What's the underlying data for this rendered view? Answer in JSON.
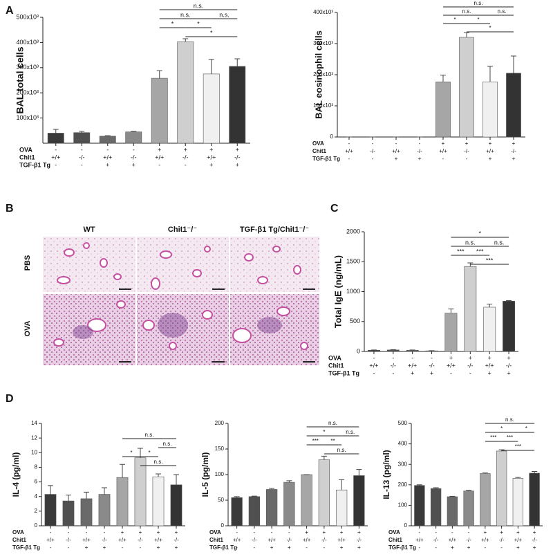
{
  "panel_labels": [
    "A",
    "B",
    "C",
    "D"
  ],
  "histology": {
    "columns": [
      "WT",
      "Chit1⁻/⁻",
      "TGF-β1 Tg/Chit1⁻/⁻"
    ],
    "rows": [
      "PBS",
      "OVA"
    ]
  },
  "chart_data": [
    {
      "type": "bar",
      "ylabel": "BAL total cells",
      "values": [
        40000,
        42000,
        28000,
        45000,
        258000,
        403000,
        275000,
        305000
      ],
      "errors": [
        15000,
        5000,
        2000,
        2000,
        30000,
        12000,
        58000,
        30000
      ],
      "colors": [
        "#3a3a3a",
        "#505050",
        "#6a6a6a",
        "#8a8a8a",
        "#a6a6a6",
        "#cfcfcf",
        "#f0f0f0",
        "#333333"
      ],
      "ylim": [
        0,
        500000
      ],
      "yticks": [
        {
          "value": 100000,
          "label": "100x10³"
        },
        {
          "value": 200000,
          "label": "200x10³"
        },
        {
          "value": 300000,
          "label": "300x10³"
        },
        {
          "value": 400000,
          "label": "400x10³"
        },
        {
          "value": 500000,
          "label": "500x10³"
        }
      ],
      "significance": [
        [
          {
            "bars": [
              4,
              7
            ],
            "label": "n.s."
          }
        ],
        [
          {
            "bars": [
              4,
              6
            ],
            "label": "n.s."
          },
          {
            "bars": [
              6,
              7
            ],
            "label": "n.s."
          }
        ],
        [
          {
            "bars": [
              4,
              5
            ],
            "label": "*"
          },
          {
            "bars": [
              5,
              6
            ],
            "label": "*"
          }
        ],
        [
          {
            "bars": [
              5,
              7
            ],
            "label": "*"
          }
        ]
      ],
      "conditions": [
        {
          "label": "OVA",
          "values": [
            "-",
            "-",
            "-",
            "-",
            "+",
            "+",
            "+",
            "+"
          ]
        },
        {
          "label": "Chit1",
          "values": [
            "+/+",
            "-/-",
            "+/+",
            "-/-",
            "+/+",
            "-/-",
            "+/+",
            "-/-"
          ]
        },
        {
          "label": "TGF-β1 Tg",
          "values": [
            "-",
            "-",
            "+",
            "+",
            "-",
            "-",
            "+",
            "+"
          ]
        }
      ]
    },
    {
      "type": "bar",
      "ylabel": "BAL eosinophil cells",
      "values": [
        0,
        0,
        0,
        0,
        177000,
        320000,
        177000,
        205000
      ],
      "errors": [
        0,
        0,
        0,
        0,
        22000,
        15000,
        50000,
        55000
      ],
      "colors": [
        "#3a3a3a",
        "#505050",
        "#6a6a6a",
        "#8a8a8a",
        "#a6a6a6",
        "#cfcfcf",
        "#f0f0f0",
        "#333333"
      ],
      "ylim": [
        0,
        400000
      ],
      "yticks": [
        0,
        {
          "value": 100000,
          "label": "100x10³"
        },
        {
          "value": 200000,
          "label": "200x10³"
        },
        {
          "value": 300000,
          "label": "300x10³"
        },
        {
          "value": 400000,
          "label": "400x10³"
        }
      ],
      "significance": [
        [
          {
            "bars": [
              4,
              7
            ],
            "label": "n.s."
          }
        ],
        [
          {
            "bars": [
              4,
              6
            ],
            "label": "n.s."
          },
          {
            "bars": [
              6,
              7
            ],
            "label": "n.s."
          }
        ],
        [
          {
            "bars": [
              4,
              5
            ],
            "label": "*"
          },
          {
            "bars": [
              5,
              6
            ],
            "label": "*"
          }
        ],
        [
          {
            "bars": [
              5,
              7
            ],
            "label": "*"
          }
        ]
      ],
      "conditions": [
        {
          "label": "OVA",
          "values": [
            "-",
            "-",
            "-",
            "-",
            "+",
            "+",
            "+",
            "+"
          ]
        },
        {
          "label": "Chit1",
          "values": [
            "+/+",
            "-/-",
            "+/+",
            "-/-",
            "+/+",
            "-/-",
            "+/+",
            "-/-"
          ]
        },
        {
          "label": "TGF-β1 Tg",
          "values": [
            "-",
            "-",
            "+",
            "+",
            "-",
            "-",
            "+",
            "+"
          ]
        }
      ]
    },
    {
      "type": "bar",
      "ylabel": "Total IgE (ng/mL)",
      "values": [
        20,
        25,
        20,
        10,
        640,
        1420,
        740,
        840
      ],
      "errors": [
        5,
        5,
        5,
        3,
        70,
        60,
        50,
        10
      ],
      "colors": [
        "#3a3a3a",
        "#505050",
        "#6a6a6a",
        "#8a8a8a",
        "#a6a6a6",
        "#cfcfcf",
        "#f0f0f0",
        "#333333"
      ],
      "ylim": [
        0,
        2000
      ],
      "yticks": [
        0,
        500,
        1000,
        1500,
        2000
      ],
      "significance": [
        [
          {
            "bars": [
              4,
              7
            ],
            "label": "*"
          }
        ],
        [
          {
            "bars": [
              4,
              6
            ],
            "label": "n.s."
          },
          {
            "bars": [
              6,
              7
            ],
            "label": "n.s."
          }
        ],
        [
          {
            "bars": [
              4,
              5
            ],
            "label": "***"
          },
          {
            "bars": [
              5,
              6
            ],
            "label": "***"
          }
        ],
        [
          {
            "bars": [
              5,
              7
            ],
            "label": "***"
          }
        ]
      ],
      "conditions": [
        {
          "label": "OVA",
          "values": [
            "-",
            "-",
            "-",
            "-",
            "+",
            "+",
            "+",
            "+"
          ]
        },
        {
          "label": "Chit1",
          "values": [
            "+/+",
            "-/-",
            "+/+",
            "-/-",
            "+/+",
            "-/-",
            "+/+",
            "-/-"
          ]
        },
        {
          "label": "TGF-β1 Tg",
          "values": [
            "-",
            "-",
            "+",
            "+",
            "-",
            "-",
            "+",
            "+"
          ]
        }
      ]
    },
    {
      "type": "bar",
      "ylabel": "IL-4 (pg/ml)",
      "values": [
        4.3,
        3.4,
        3.7,
        4.3,
        6.6,
        9.3,
        6.7,
        5.6
      ],
      "errors": [
        1.2,
        0.8,
        0.9,
        0.9,
        1.8,
        1.3,
        0.4,
        1.4
      ],
      "colors": [
        "#3a3a3a",
        "#505050",
        "#6a6a6a",
        "#8a8a8a",
        "#a6a6a6",
        "#cfcfcf",
        "#f0f0f0",
        "#333333"
      ],
      "ylim": [
        0,
        14
      ],
      "yticks": [
        0,
        2,
        4,
        6,
        8,
        10,
        12,
        14
      ],
      "significance": [
        [
          {
            "bars": [
              4,
              7
            ],
            "label": "n.s."
          }
        ],
        [
          {
            "bars": [
              6,
              7
            ],
            "label": "n.s."
          }
        ],
        [
          {
            "bars": [
              4,
              5
            ],
            "label": "*"
          },
          {
            "bars": [
              5,
              6
            ],
            "label": "*"
          }
        ],
        [
          {
            "bars": [
              5,
              7
            ],
            "label": "n.s."
          }
        ]
      ],
      "conditions": [
        {
          "label": "OVA",
          "values": [
            "-",
            "-",
            "-",
            "-",
            "+",
            "+",
            "+",
            "+"
          ]
        },
        {
          "label": "Chit1",
          "values": [
            "+/+",
            "-/-",
            "+/+",
            "-/-",
            "+/+",
            "-/-",
            "+/+",
            "-/-"
          ]
        },
        {
          "label": "TGF-β1 Tg",
          "values": [
            "-",
            "-",
            "+",
            "+",
            "-",
            "-",
            "+",
            "+"
          ]
        }
      ]
    },
    {
      "type": "bar",
      "ylabel": "IL-5 (pg/ml)",
      "values": [
        55,
        57,
        71,
        85,
        100,
        129,
        70,
        98
      ],
      "errors": [
        2,
        1,
        2,
        3,
        0,
        7,
        20,
        12
      ],
      "colors": [
        "#3a3a3a",
        "#505050",
        "#6a6a6a",
        "#8a8a8a",
        "#a6a6a6",
        "#cfcfcf",
        "#f0f0f0",
        "#333333"
      ],
      "ylim": [
        0,
        200
      ],
      "yticks": [
        0,
        50,
        100,
        150,
        200
      ],
      "significance": [
        [
          {
            "bars": [
              4,
              7
            ],
            "label": "n.s."
          }
        ],
        [
          {
            "bars": [
              4,
              6
            ],
            "label": "*"
          },
          {
            "bars": [
              6,
              7
            ],
            "label": "n.s."
          }
        ],
        [
          {
            "bars": [
              4,
              5
            ],
            "label": "***"
          },
          {
            "bars": [
              5,
              6
            ],
            "label": "**"
          }
        ],
        [
          {
            "bars": [
              5,
              7
            ],
            "label": "n.s."
          }
        ]
      ],
      "conditions": [
        {
          "label": "OVA",
          "values": [
            "-",
            "-",
            "-",
            "-",
            "+",
            "+",
            "+",
            "+"
          ]
        },
        {
          "label": "Chit1",
          "values": [
            "+/+",
            "-/-",
            "+/+",
            "-/-",
            "+/+",
            "-/-",
            "+/+",
            "-/-"
          ]
        },
        {
          "label": "TGF-β1 Tg",
          "values": [
            "-",
            "-",
            "+",
            "+",
            "-",
            "-",
            "+",
            "+"
          ]
        }
      ]
    },
    {
      "type": "bar",
      "ylabel": "IL-13 (pg/ml)",
      "values": [
        197,
        182,
        142,
        170,
        255,
        365,
        232,
        257
      ],
      "errors": [
        3,
        4,
        2,
        3,
        3,
        6,
        4,
        8
      ],
      "colors": [
        "#3a3a3a",
        "#505050",
        "#6a6a6a",
        "#8a8a8a",
        "#a6a6a6",
        "#cfcfcf",
        "#f0f0f0",
        "#333333"
      ],
      "ylim": [
        0,
        500
      ],
      "yticks": [
        0,
        100,
        200,
        300,
        400,
        500
      ],
      "significance": [
        [
          {
            "bars": [
              4,
              7
            ],
            "label": "n.s."
          }
        ],
        [
          {
            "bars": [
              4,
              6
            ],
            "label": "*"
          },
          {
            "bars": [
              6,
              7
            ],
            "label": "*"
          }
        ],
        [
          {
            "bars": [
              4,
              5
            ],
            "label": "***"
          },
          {
            "bars": [
              5,
              6
            ],
            "label": "***"
          }
        ],
        [
          {
            "bars": [
              5,
              7
            ],
            "label": "***"
          }
        ]
      ],
      "conditions": [
        {
          "label": "OVA",
          "values": [
            "-",
            "-",
            "-",
            "-",
            "+",
            "+",
            "+",
            "+"
          ]
        },
        {
          "label": "Chit1",
          "values": [
            "+/+",
            "-/-",
            "+/+",
            "-/-",
            "+/+",
            "-/-",
            "+/+",
            "-/-"
          ]
        },
        {
          "label": "TGF-β1 Tg",
          "values": [
            "-",
            "-",
            "+",
            "+",
            "-",
            "-",
            "+",
            "+"
          ]
        }
      ]
    }
  ]
}
